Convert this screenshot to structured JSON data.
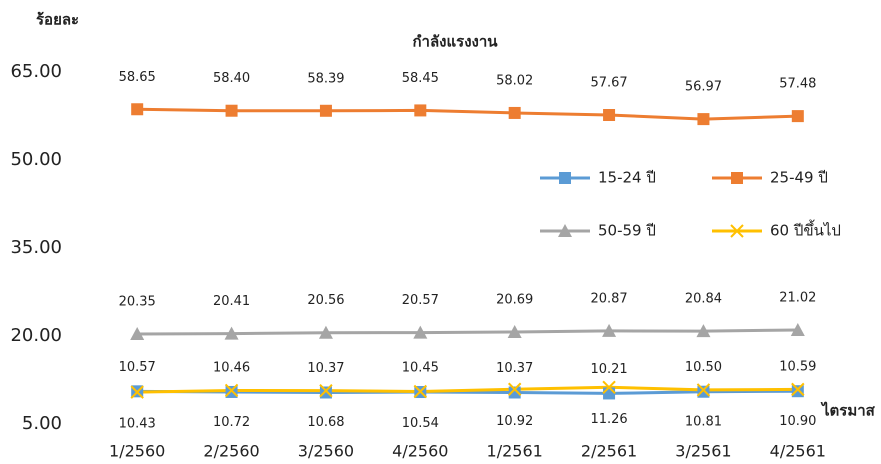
{
  "chart_data": {
    "type": "line",
    "title": "กำลังแรงงาน",
    "y_label": "ร้อยละ",
    "x_label": "ไตรมาส",
    "categories": [
      "1/2560",
      "2/2560",
      "3/2560",
      "4/2560",
      "1/2561",
      "2/2561",
      "3/2561",
      "4/2561"
    ],
    "ylim": [
      5,
      65
    ],
    "yticks": [
      {
        "value": 5,
        "label": "5.00"
      },
      {
        "value": 20,
        "label": "20.00"
      },
      {
        "value": 35,
        "label": "35.00"
      },
      {
        "value": 50,
        "label": "50.00"
      },
      {
        "value": 65,
        "label": "65.00"
      }
    ],
    "grid": false,
    "series": [
      {
        "name": "15-24 ปี",
        "color": "#5b9bd5",
        "marker": "square",
        "values": [
          10.57,
          10.46,
          10.37,
          10.45,
          10.37,
          10.21,
          10.5,
          10.59
        ],
        "value_labels": [
          "10.57",
          "10.46",
          "10.37",
          "10.45",
          "10.37",
          "10.21",
          "10.50",
          "10.59"
        ]
      },
      {
        "name": "25-49 ปี",
        "color": "#ed7d31",
        "marker": "square",
        "values": [
          58.65,
          58.4,
          58.39,
          58.45,
          58.02,
          57.67,
          56.97,
          57.48
        ],
        "value_labels": [
          "58.65",
          "58.40",
          "58.39",
          "58.45",
          "58.02",
          "57.67",
          "56.97",
          "57.48"
        ]
      },
      {
        "name": "50-59 ปี",
        "color": "#a5a5a5",
        "marker": "triangle",
        "values": [
          20.35,
          20.41,
          20.56,
          20.57,
          20.69,
          20.87,
          20.84,
          21.02
        ],
        "value_labels": [
          "20.35",
          "20.41",
          "20.56",
          "20.57",
          "20.69",
          "20.87",
          "20.84",
          "21.02"
        ]
      },
      {
        "name": "60 ปีขึ้นไป",
        "color": "#ffc000",
        "marker": "x",
        "values": [
          10.43,
          10.72,
          10.68,
          10.54,
          10.92,
          11.26,
          10.81,
          10.9
        ],
        "value_labels": [
          "10.43",
          "10.72",
          "10.68",
          "10.54",
          "10.92",
          "11.26",
          "10.81",
          "10.90"
        ]
      }
    ]
  }
}
